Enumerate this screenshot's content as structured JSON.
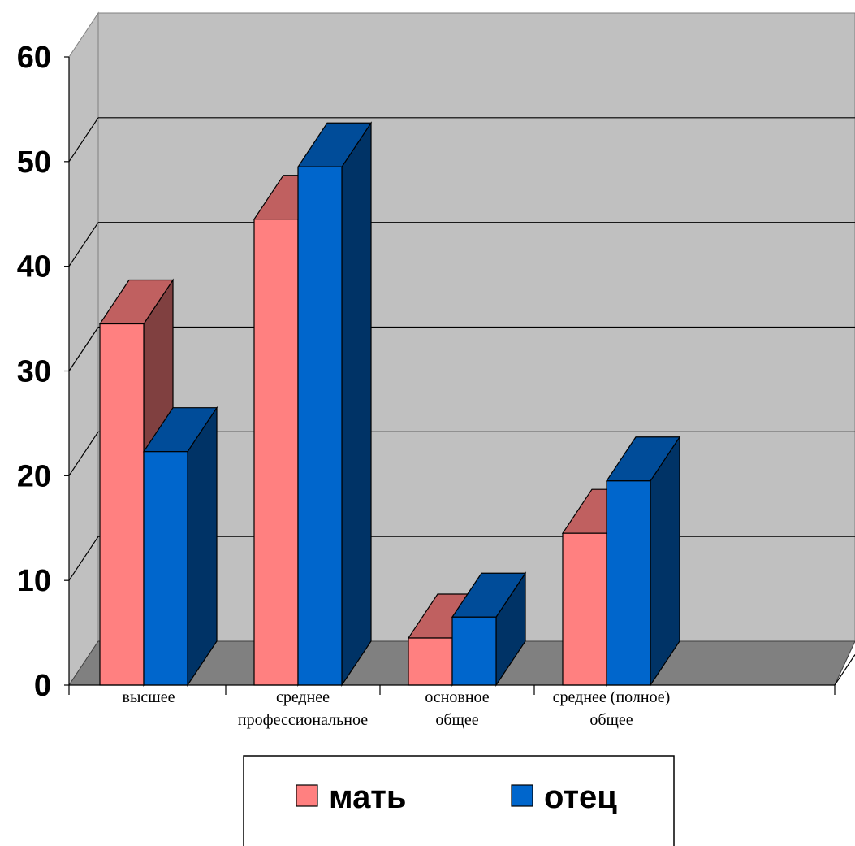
{
  "chart_data": {
    "type": "bar",
    "categories": [
      [
        "высшее"
      ],
      [
        "среднее",
        "профессиональное"
      ],
      [
        "основное",
        "общее"
      ],
      [
        "среднее (полное)",
        "общее"
      ]
    ],
    "series": [
      {
        "name": "мать",
        "values": [
          34.5,
          44.5,
          4.5,
          14.5
        ]
      },
      {
        "name": "отец",
        "values": [
          22.3,
          49.5,
          6.5,
          19.5
        ]
      }
    ],
    "ylim": [
      0,
      60
    ],
    "yticks": [
      "0",
      "10",
      "20",
      "30",
      "40",
      "50",
      "60"
    ],
    "grid": true,
    "legend_position": "bottom-center"
  },
  "colors": {
    "mother_front": "#ff8080",
    "mother_top": "#c06060",
    "mother_side": "#804040",
    "father_front": "#0066cc",
    "father_top": "#004c99",
    "father_side": "#003366",
    "back_wall": "#c0c0c0",
    "floor": "#808080"
  }
}
